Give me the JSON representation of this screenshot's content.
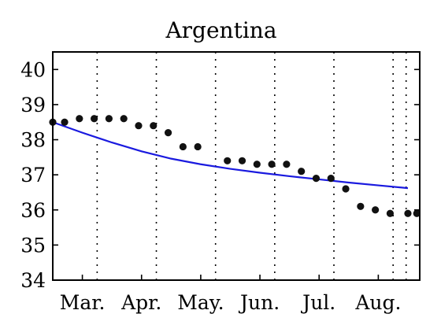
{
  "chart_data": {
    "type": "scatter",
    "title": "Argentina",
    "xlabel": "",
    "ylabel": "",
    "ylim": [
      34,
      40.5
    ],
    "yticks": [
      34,
      35,
      36,
      37,
      38,
      39,
      40
    ],
    "xlim": [
      0,
      6.2
    ],
    "xticks": [
      {
        "label": "Mar.",
        "x": 0.5
      },
      {
        "label": "Apr.",
        "x": 1.5
      },
      {
        "label": "May.",
        "x": 2.5
      },
      {
        "label": "Jun.",
        "x": 3.5
      },
      {
        "label": "Jul.",
        "x": 4.5
      },
      {
        "label": "Aug.",
        "x": 5.5
      }
    ],
    "grid_x": [
      0.75,
      1.75,
      2.75,
      3.75,
      4.75,
      5.75,
      5.97
    ],
    "grid": "vertical-dotted",
    "colors": {
      "points": "#111111",
      "fit": "#1a1adf"
    },
    "series": [
      {
        "kind": "points",
        "x": [
          0.0,
          0.2,
          0.45,
          0.7,
          0.95,
          1.2,
          1.45,
          1.7,
          1.95,
          2.2,
          2.45,
          2.95,
          3.2,
          3.45,
          3.7,
          3.95,
          4.2,
          4.45,
          4.7,
          4.95,
          5.2,
          5.45,
          5.7,
          6.0,
          6.15
        ],
        "y": [
          38.5,
          38.5,
          38.6,
          38.6,
          38.6,
          38.6,
          38.4,
          38.4,
          38.2,
          37.8,
          37.8,
          37.4,
          37.4,
          37.3,
          37.3,
          37.3,
          37.1,
          36.9,
          36.9,
          36.6,
          36.1,
          36.0,
          35.9,
          35.9,
          35.9
        ]
      },
      {
        "kind": "line",
        "x": [
          0.0,
          0.5,
          1.0,
          1.5,
          2.0,
          2.5,
          3.0,
          3.5,
          4.0,
          4.5,
          5.0,
          5.5,
          6.0
        ],
        "y": [
          38.5,
          38.2,
          37.92,
          37.67,
          37.46,
          37.3,
          37.17,
          37.06,
          36.96,
          36.87,
          36.78,
          36.7,
          36.62
        ]
      }
    ]
  }
}
